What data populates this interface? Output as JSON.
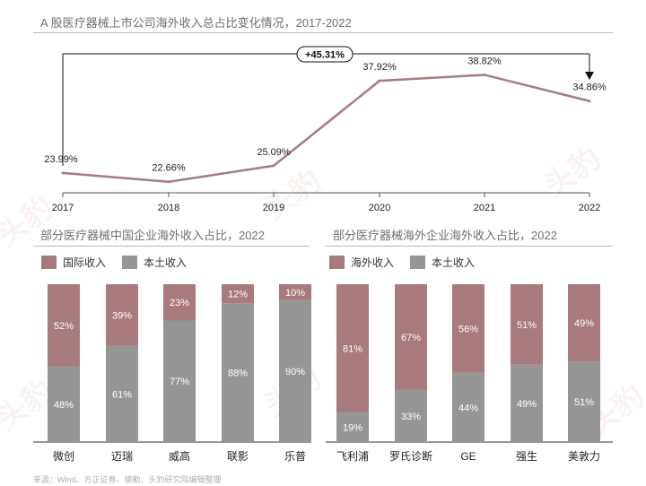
{
  "colors": {
    "intl": "#a87a7d",
    "domestic": "#969696",
    "line": "#a87a7d"
  },
  "top": {
    "title": "A 股医疗器械上市公司海外收入总占比变化情况，2017-2022"
  },
  "left": {
    "title": "部分医疗器械中国企业海外收入占比，2022",
    "legend": [
      "国际收入",
      "本土收入"
    ]
  },
  "right": {
    "title": "部分医疗器械海外企业海外收入占比，2022",
    "legend": [
      "海外收入",
      "本土收入"
    ]
  },
  "source": "来源：Wind、方正证券、德勤、头豹研究院编辑整理",
  "watermark": "头豹",
  "chart_data": [
    {
      "type": "line",
      "title": "A 股医疗器械上市公司海外收入总占比变化情况，2017-2022",
      "x": [
        "2017",
        "2018",
        "2019",
        "2020",
        "2021",
        "2022"
      ],
      "values": [
        23.99,
        22.66,
        25.09,
        37.92,
        38.82,
        34.86
      ],
      "labels": [
        "23.99%",
        "22.66%",
        "25.09%",
        "37.92%",
        "38.82%",
        "34.86%"
      ],
      "ylim": [
        21,
        42
      ],
      "annotation": "+45.31%"
    },
    {
      "type": "bar",
      "stacked": true,
      "title": "部分医疗器械中国企业海外收入占比，2022",
      "categories": [
        "微创",
        "迈瑞",
        "威高",
        "联影",
        "乐普"
      ],
      "series": [
        {
          "name": "本土收入",
          "values": [
            48,
            61,
            77,
            88,
            90
          ]
        },
        {
          "name": "国际收入",
          "values": [
            52,
            39,
            23,
            12,
            10
          ]
        }
      ],
      "ylim": [
        0,
        100
      ]
    },
    {
      "type": "bar",
      "stacked": true,
      "title": "部分医疗器械海外企业海外收入占比，2022",
      "categories": [
        "飞利浦",
        "罗氏诊断",
        "GE",
        "强生",
        "美敦力"
      ],
      "series": [
        {
          "name": "本土收入",
          "values": [
            19,
            33,
            44,
            49,
            51
          ]
        },
        {
          "name": "海外收入",
          "values": [
            81,
            67,
            56,
            51,
            49
          ]
        }
      ],
      "ylim": [
        0,
        100
      ]
    }
  ]
}
